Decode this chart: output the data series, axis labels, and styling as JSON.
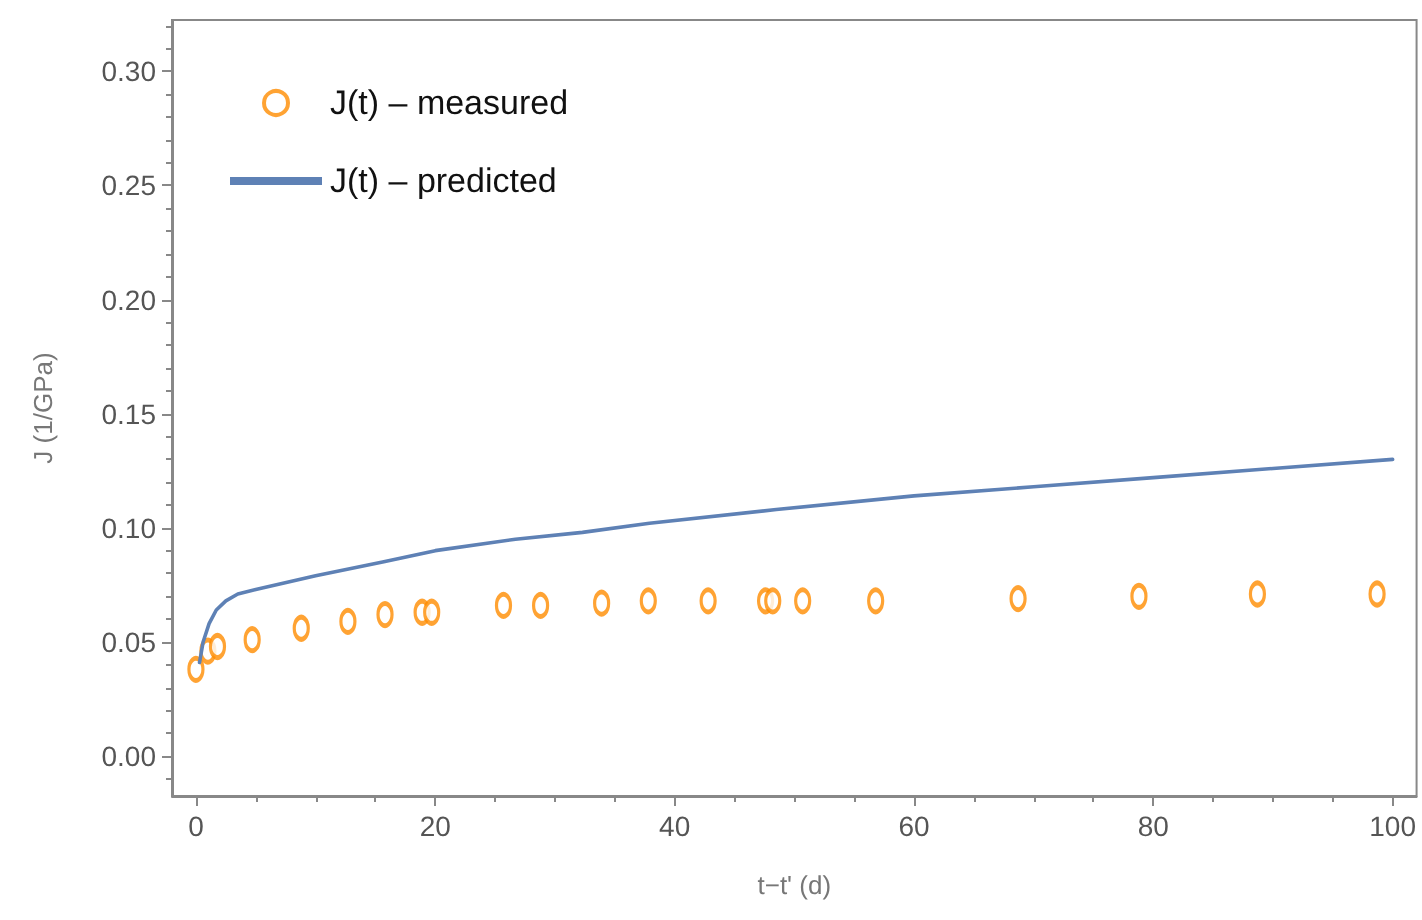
{
  "chart_data": {
    "type": "scatter",
    "xlabel": "t−t' (d)",
    "ylabel": "J (1/GPa)",
    "xlim": [
      -2,
      102
    ],
    "xticks": [
      0,
      20,
      40,
      60,
      80,
      100
    ],
    "ylim": [
      -0.0175,
      0.3225
    ],
    "yticks": [
      {
        "value": 0,
        "label": "0.00"
      },
      {
        "value": 0.05,
        "label": "0.05"
      },
      {
        "value": 0.1,
        "label": "0.10"
      },
      {
        "value": 0.15,
        "label": "0.15"
      },
      {
        "value": 0.2,
        "label": "0.20"
      },
      {
        "value": 0.25,
        "label": "0.25"
      },
      {
        "value": 0.3,
        "label": "0.30"
      }
    ],
    "grid": false,
    "legend": "top left",
    "marker": "circle",
    "series": [
      {
        "name": "J(t) – measured",
        "color": "#ff8c00",
        "x": [
          0,
          1,
          1.8,
          4.7,
          8.8,
          12.7,
          15.8,
          18.9,
          19.7,
          25.7,
          28.8,
          33.9,
          37.8,
          42.8,
          47.6,
          48.2,
          50.7,
          56.8,
          68.7,
          78.8,
          88.7,
          98.7
        ],
        "values": [
          0.038,
          0.046,
          0.048,
          0.051,
          0.056,
          0.059,
          0.062,
          0.063,
          0.063,
          0.066,
          0.066,
          0.067,
          0.068,
          0.068,
          0.068,
          0.068,
          0.068,
          0.068,
          0.069,
          0.07,
          0.071,
          0.071
        ]
      },
      {
        "name": "J(t) – predicted",
        "type": "line",
        "color": "#5e81b5",
        "line_style": "solid",
        "marker": "none",
        "x": [
          0.3,
          0.6,
          1.1,
          1.7,
          2.5,
          3.5,
          5,
          10,
          15.6,
          20,
          26.7,
          32.3,
          37.9,
          48.5,
          60,
          70,
          80,
          90,
          100
        ],
        "values": [
          0.041,
          0.05,
          0.058,
          0.064,
          0.068,
          0.071,
          0.073,
          0.079,
          0.085,
          0.09,
          0.095,
          0.098,
          0.102,
          0.108,
          0.114,
          0.118,
          0.122,
          0.126,
          0.13
        ]
      }
    ]
  }
}
